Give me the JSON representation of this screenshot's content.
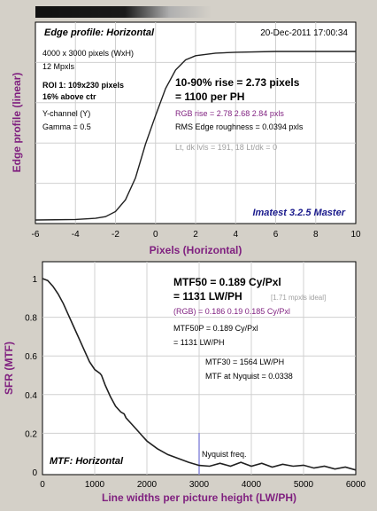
{
  "colors": {
    "background": "#d4d0c8",
    "plot_bg": "#ffffff",
    "grid": "#d0d0d0",
    "axis_label": "#7f1f7f",
    "curve": "#202020",
    "nyquist_line": "#8c8cdc",
    "imatest_blue": "#1a1a8c",
    "gray_note": "#a0a0a0"
  },
  "header": {
    "title": "Edge profile: Horizontal",
    "date": "20-Dec-2011 17:00:34"
  },
  "edge_info": {
    "size": "4000 x 3000 pixels (WxH)",
    "mpxls": "12 Mpxls",
    "roi": "ROI 1:  109x230 pixels",
    "roi_pos": "16% above ctr",
    "channel": "Y-channel  (Y)",
    "gamma": "Gamma = 0.5",
    "rise": "10-90% rise = 2.73 pixels",
    "per_ph": "= 1100 per PH",
    "rgb_rise": "RGB rise = 2.78  2.68  2.84 pxls",
    "rms": "RMS Edge roughness = 0.0394 pxls",
    "levels": "Lt, dk lvls = 191, 18   Lt/dk = 0",
    "imatest": "Imatest 3.2.5 Master"
  },
  "mtf_info": {
    "mtf50": "MTF50 = 0.189 Cy/Pxl",
    "mtf50_lw": "= 1131 LW/PH",
    "ideal": "[1.71 mpxls ideal]",
    "rgb": "(RGB) = 0.186  0.19  0.185 Cy/Pxl",
    "mtf50p": "MTF50P = 0.189 Cy/Pxl",
    "mtf50p_lw": "= 1131 LW/PH",
    "mtf30": "MTF30 = 1564 LW/PH",
    "nyq": "MTF at Nyquist = 0.0338",
    "nyq_label": "Nyquist freq.",
    "mode": "MTF: Horizontal"
  },
  "chart_data": [
    {
      "type": "line",
      "title": "Edge profile: Horizontal",
      "xlabel": "Pixels (Horizontal)",
      "ylabel": "Edge profile (linear)",
      "xlim": [
        -6,
        10
      ],
      "xticks": [
        "-6",
        "-4",
        "-2",
        "0",
        "2",
        "4",
        "6",
        "8",
        "10"
      ],
      "grid": true,
      "series": [
        {
          "x": [
            -6,
            -4,
            -3,
            -2.5,
            -2,
            -1.5,
            -1,
            -0.5,
            0,
            0.5,
            1,
            1.5,
            2,
            3,
            4,
            6,
            8,
            10
          ],
          "y": [
            0.0,
            0.003,
            0.01,
            0.02,
            0.05,
            0.12,
            0.25,
            0.45,
            0.62,
            0.78,
            0.89,
            0.95,
            0.975,
            0.99,
            0.995,
            1.0,
            1.0,
            1.0
          ]
        }
      ]
    },
    {
      "type": "line",
      "xlabel": "Line widths per picture height (LW/PH)",
      "ylabel": "SFR (MTF)",
      "xlim": [
        0,
        6000
      ],
      "ylim": [
        0,
        1
      ],
      "xticks": [
        "0",
        "1000",
        "2000",
        "3000",
        "4000",
        "5000",
        "6000"
      ],
      "yticks": [
        "0",
        "0.2",
        "0.4",
        "0.6",
        "0.8",
        "1"
      ],
      "grid": true,
      "nyquist_x": 3000,
      "series": [
        {
          "x": [
            0,
            100,
            200,
            300,
            400,
            500,
            600,
            700,
            800,
            900,
            1000,
            1100,
            1131,
            1200,
            1300,
            1400,
            1500,
            1564,
            1600,
            1700,
            1800,
            1900,
            2000,
            2200,
            2400,
            2600,
            2800,
            3000,
            3200,
            3400,
            3600,
            3800,
            4000,
            4200,
            4400,
            4600,
            4800,
            5000,
            5200,
            5400,
            5600,
            5800,
            6000
          ],
          "y": [
            1.0,
            0.99,
            0.96,
            0.92,
            0.87,
            0.81,
            0.75,
            0.69,
            0.63,
            0.57,
            0.53,
            0.51,
            0.5,
            0.45,
            0.39,
            0.34,
            0.31,
            0.3,
            0.28,
            0.25,
            0.22,
            0.19,
            0.16,
            0.12,
            0.09,
            0.07,
            0.05,
            0.034,
            0.03,
            0.045,
            0.03,
            0.05,
            0.03,
            0.045,
            0.025,
            0.04,
            0.03,
            0.035,
            0.02,
            0.03,
            0.015,
            0.025,
            0.01
          ]
        }
      ]
    }
  ]
}
